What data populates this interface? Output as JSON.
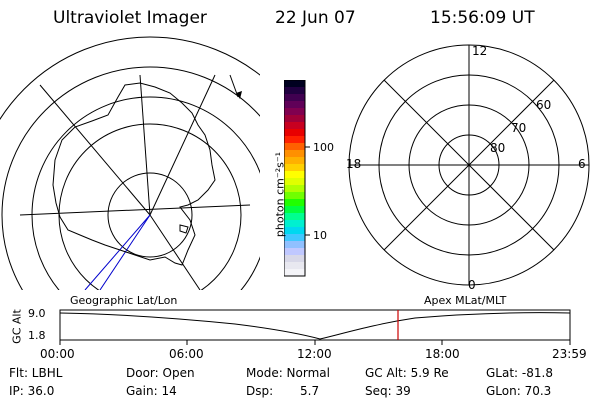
{
  "header": {
    "instrument": "Ultraviolet Imager",
    "date": "22 Jun 07",
    "time": "15:56:09 UT"
  },
  "colorbar": {
    "unit_label": "photon cm⁻²s⁻¹",
    "tick_labels": [
      "100",
      "10"
    ],
    "colors": [
      "#000020",
      "#200040",
      "#400050",
      "#600058",
      "#800050",
      "#a00038",
      "#c80020",
      "#e80000",
      "#ff2000",
      "#ff6000",
      "#ff9000",
      "#ffb000",
      "#ffd000",
      "#ffff00",
      "#e0ff00",
      "#b0ff00",
      "#70ff00",
      "#20ff00",
      "#00ff40",
      "#00ff90",
      "#00f0d0",
      "#00d8f0",
      "#40c8ff",
      "#90c0ff",
      "#c0c8ff",
      "#d8d8e8",
      "#e8e8f0",
      "#f4f4f8"
    ]
  },
  "polar_plot": {
    "mlt_labels": {
      "top": "12",
      "left": "18",
      "right": "6",
      "bottom": "0"
    },
    "lat_labels": [
      "60",
      "70",
      "80"
    ]
  },
  "timeline": {
    "y_axis_label": "GC Alt",
    "y_ticks": [
      "9.0",
      "1.8"
    ],
    "left_title": "Geographic Lat/Lon",
    "right_title": "Apex MLat/MLT",
    "x_ticks": [
      "00:00",
      "06:00",
      "12:00",
      "18:00",
      "23:59"
    ]
  },
  "info": {
    "row1": {
      "filter": "Flt: LBHL",
      "door": "Door: Open",
      "mode": "Mode: Normal",
      "gc_alt": "GC Alt: 5.9 Re",
      "glat": "GLat: -81.8"
    },
    "row2": {
      "ip": "IP: 36.0",
      "gain": "Gain: 14",
      "dsp_label": "Dsp:",
      "dsp_value": "5.7",
      "seq": "Seq: 39",
      "glon": "GLon: 70.3"
    }
  }
}
